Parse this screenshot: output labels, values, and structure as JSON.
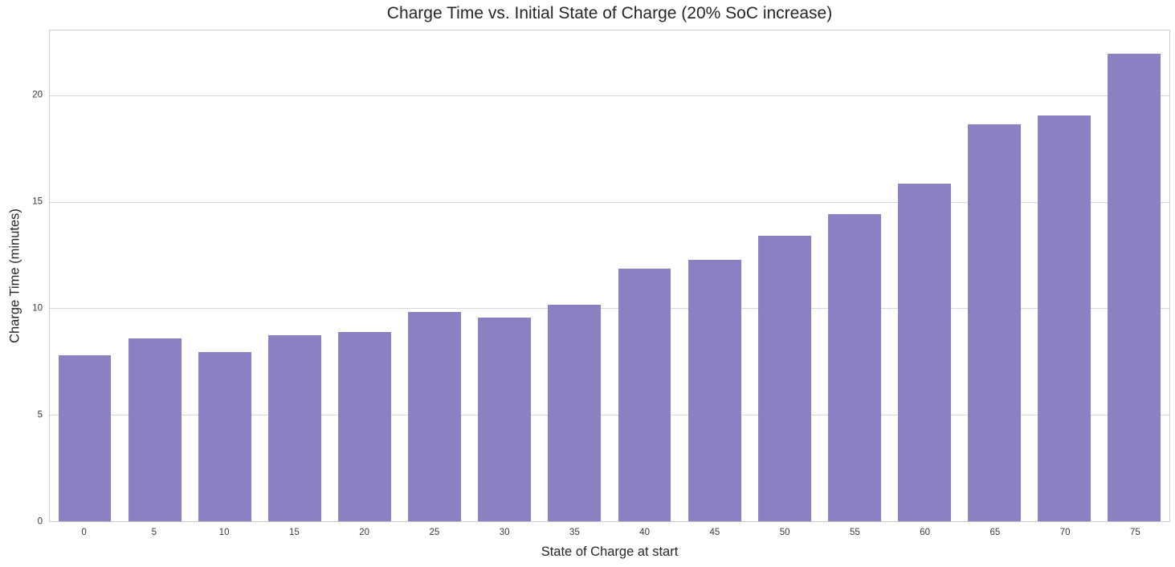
{
  "chart_data": {
    "type": "bar",
    "title": "Charge Time vs. Initial State of Charge (20% SoC increase)",
    "xlabel": "State of Charge at start",
    "ylabel": "Charge Time (minutes)",
    "categories": [
      "0",
      "5",
      "10",
      "15",
      "20",
      "25",
      "30",
      "35",
      "40",
      "45",
      "50",
      "55",
      "60",
      "65",
      "70",
      "75"
    ],
    "values": [
      7.8,
      8.6,
      7.95,
      8.75,
      8.9,
      9.85,
      9.6,
      10.2,
      11.9,
      12.3,
      13.45,
      14.45,
      15.9,
      18.7,
      19.1,
      22.0
    ],
    "yticks": [
      0,
      5,
      10,
      15,
      20
    ],
    "ylim": [
      0,
      23.1
    ],
    "grid": true,
    "legend_position": "none",
    "colors": {
      "bar": "#8b80c2",
      "grid": "#d8d8d8",
      "spine": "#cccccc",
      "title_text": "#262626",
      "axis_label_text": "#262626",
      "tick_text": "#3a3a3a",
      "background": "#ffffff"
    }
  }
}
